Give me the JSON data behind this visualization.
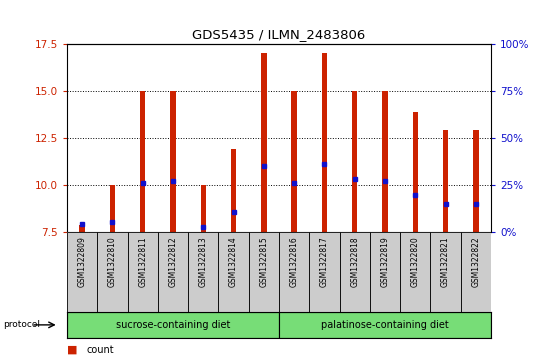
{
  "title": "GDS5435 / ILMN_2483806",
  "samples": [
    "GSM1322809",
    "GSM1322810",
    "GSM1322811",
    "GSM1322812",
    "GSM1322813",
    "GSM1322814",
    "GSM1322815",
    "GSM1322816",
    "GSM1322817",
    "GSM1322818",
    "GSM1322819",
    "GSM1322820",
    "GSM1322821",
    "GSM1322822"
  ],
  "count_values": [
    7.9,
    10.0,
    15.0,
    15.0,
    10.0,
    11.9,
    17.0,
    15.0,
    17.0,
    15.0,
    15.0,
    13.9,
    12.9,
    12.9
  ],
  "percentile_values": [
    7.95,
    8.05,
    10.1,
    10.2,
    7.8,
    8.6,
    11.0,
    10.1,
    11.1,
    10.3,
    10.2,
    9.5,
    9.0,
    9.0
  ],
  "ymin": 7.5,
  "ymax": 17.5,
  "yticks": [
    7.5,
    10.0,
    12.5,
    15.0,
    17.5
  ],
  "y2ticks_pct": [
    0,
    25,
    50,
    75,
    100
  ],
  "groups": [
    {
      "label": "sucrose-containing diet",
      "start": 0,
      "end": 7
    },
    {
      "label": "palatinose-containing diet",
      "start": 7,
      "end": 14
    }
  ],
  "bar_color": "#CC2200",
  "percentile_color": "#1111CC",
  "bar_width": 0.18,
  "base_value": 7.5,
  "tick_label_color_left": "#CC2200",
  "tick_label_color_right": "#1111CC",
  "grid_color": "#000000",
  "sample_bg_color": "#CCCCCC",
  "group_bg_color": "#77DD77",
  "plot_bg_color": "#FFFFFF"
}
